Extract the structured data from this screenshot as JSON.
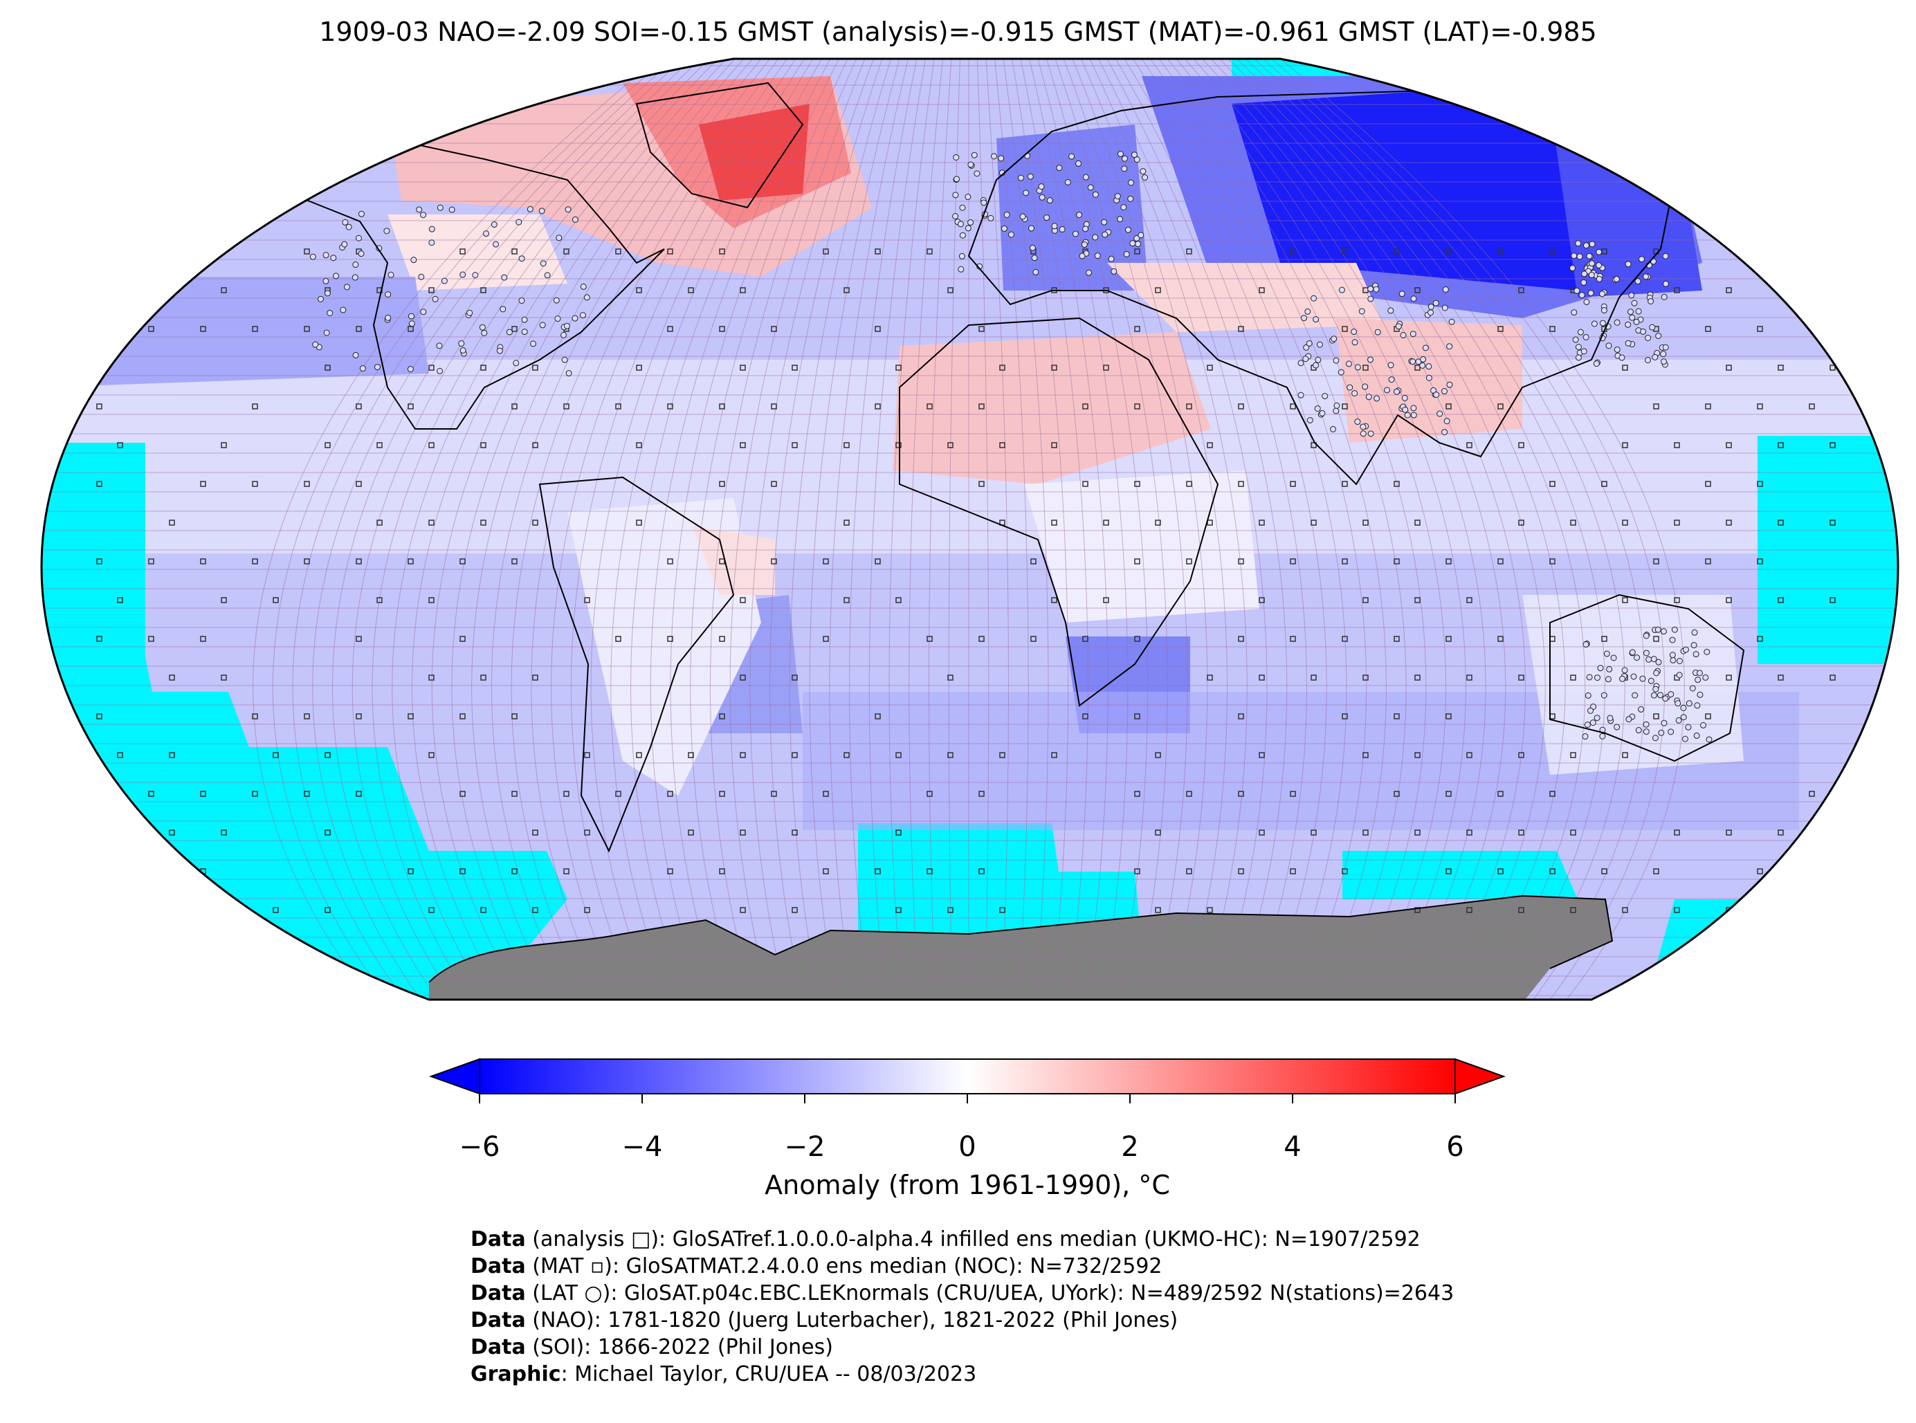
{
  "title": "1909-03 NAO=-2.09 SOI=-0.15 GMST (analysis)=-0.915 GMST (MAT)=-0.961 GMST (LAT)=-0.985",
  "colors": {
    "ocean_missing": "#00f5ff",
    "antarctica": "#808080",
    "cold": "#0000ff",
    "neutral": "#ffffff",
    "warm": "#ff0000",
    "grid": "#9b6aa0"
  },
  "colorbar": {
    "label": "Anomaly (from 1961-1990), °C",
    "vmin": -6,
    "vmax": 6,
    "ticks": [
      "−6",
      "−4",
      "−2",
      "0",
      "2",
      "4",
      "6"
    ]
  },
  "anomaly_regions": [
    {
      "region": "North America / Greenland",
      "anomaly_c": 3
    },
    {
      "region": "Greenland east coast",
      "anomaly_c": 5
    },
    {
      "region": "Siberia",
      "anomaly_c": -6
    },
    {
      "region": "Europe",
      "anomaly_c": -4
    },
    {
      "region": "Sahara / Middle East",
      "anomaly_c": 1.5
    },
    {
      "region": "India",
      "anomaly_c": 1.5
    },
    {
      "region": "South Atlantic",
      "anomaly_c": -3
    },
    {
      "region": "Southern Ocean",
      "anomaly_c": -2
    }
  ],
  "caption": [
    {
      "bold": "Data",
      "text": " (analysis □): GloSATref.1.0.0.0-alpha.4 infilled ens median (UKMO-HC): N=1907/2592"
    },
    {
      "bold": "Data",
      "text": " (MAT ▫): GloSATMAT.2.4.0.0 ens median (NOC): N=732/2592"
    },
    {
      "bold": "Data",
      "text": " (LAT ○): GloSAT.p04c.EBC.LEKnormals (CRU/UEA, UYork): N=489/2592 N(stations)=2643"
    },
    {
      "bold": "Data",
      "text": " (NAO): 1781-1820 (Juerg Luterbacher), 1821-2022 (Phil Jones)"
    },
    {
      "bold": "Data",
      "text": " (SOI): 1866-2022 (Phil Jones)"
    },
    {
      "bold": "Graphic",
      "text": ": Michael Taylor, CRU/UEA -- 08/03/2023"
    }
  ]
}
